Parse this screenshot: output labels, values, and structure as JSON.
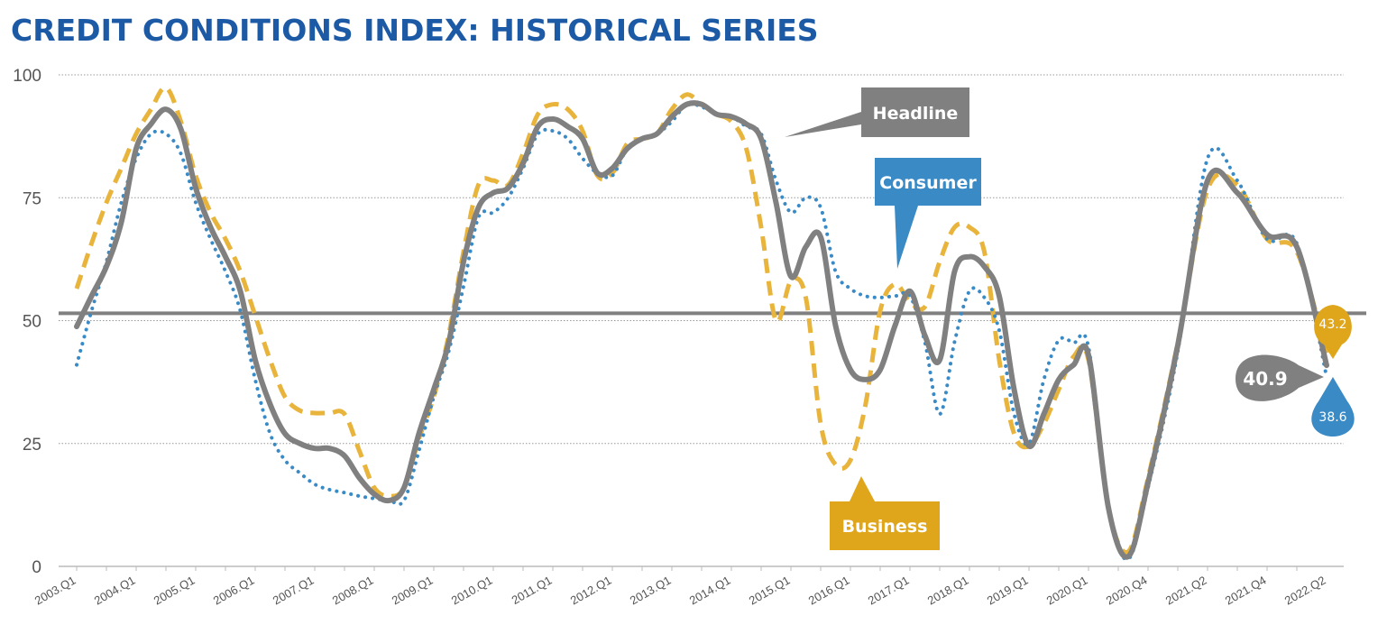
{
  "chart_data": {
    "type": "line",
    "title": "CREDIT CONDITIONS INDEX: HISTORICAL SERIES",
    "ylim": [
      0,
      100
    ],
    "yticks": [
      0,
      25,
      50,
      75,
      100
    ],
    "grid": true,
    "reference_line": 51.5,
    "x_tick_labels": [
      "2003.Q1",
      "2004.Q1",
      "2005.Q1",
      "2006.Q1",
      "2007.Q1",
      "2008.Q1",
      "2009.Q1",
      "2010.Q1",
      "2011.Q1",
      "2012.Q1",
      "2013.Q1",
      "2014.Q1",
      "2015.Q1",
      "2016.Q1",
      "2017.Q1",
      "2018.Q1",
      "2019.Q1",
      "2020.Q1",
      "2020.Q4",
      "2021.Q2",
      "2021.Q4",
      "2022.Q2"
    ],
    "x": [
      "2003.Q1",
      "2003.Q2",
      "2003.Q3",
      "2003.Q4",
      "2004.Q1",
      "2004.Q2",
      "2004.Q3",
      "2004.Q4",
      "2005.Q1",
      "2005.Q2",
      "2005.Q3",
      "2005.Q4",
      "2006.Q1",
      "2006.Q2",
      "2006.Q3",
      "2006.Q4",
      "2007.Q1",
      "2007.Q2",
      "2007.Q3",
      "2007.Q4",
      "2008.Q1",
      "2008.Q2",
      "2008.Q3",
      "2008.Q4",
      "2009.Q1",
      "2009.Q2",
      "2009.Q3",
      "2009.Q4",
      "2010.Q1",
      "2010.Q2",
      "2010.Q3",
      "2010.Q4",
      "2011.Q1",
      "2011.Q2",
      "2011.Q3",
      "2011.Q4",
      "2012.Q1",
      "2012.Q2",
      "2012.Q3",
      "2012.Q4",
      "2013.Q1",
      "2013.Q2",
      "2013.Q3",
      "2013.Q4",
      "2014.Q1",
      "2014.Q2",
      "2014.Q3",
      "2014.Q4",
      "2015.Q1",
      "2015.Q2",
      "2015.Q3",
      "2015.Q4",
      "2016.Q1",
      "2016.Q2",
      "2016.Q3",
      "2016.Q4",
      "2017.Q1",
      "2017.Q2",
      "2017.Q3",
      "2017.Q4",
      "2018.Q1",
      "2018.Q2",
      "2018.Q3",
      "2018.Q4",
      "2019.Q1",
      "2019.Q2",
      "2019.Q3",
      "2019.Q4",
      "2020.Q1",
      "2020.Q2",
      "2020.Q3",
      "2020.Q4",
      "2021.Q1",
      "2021.Q2",
      "2021.Q3",
      "2021.Q4",
      "2022.Q1",
      "2022.Q2"
    ],
    "series": [
      {
        "name": "Headline",
        "color": "#808080",
        "style": "solid",
        "last_value": "40.9",
        "values": [
          48.8,
          55,
          61,
          70,
          85,
          90,
          93,
          89,
          77,
          69,
          63,
          56,
          42,
          33,
          27,
          25,
          24,
          24,
          22.5,
          18,
          14.7,
          13.4,
          16,
          27,
          36,
          45.5,
          62,
          73,
          76,
          77,
          82,
          89.5,
          91,
          89.5,
          87,
          80,
          81,
          85,
          87,
          88,
          91.5,
          94,
          94,
          92,
          91.5,
          90,
          87,
          74,
          59,
          65,
          67,
          49,
          40,
          38,
          40,
          49,
          56,
          47,
          42,
          60,
          63,
          61,
          55,
          36,
          24.5,
          31,
          38,
          41,
          43,
          12,
          2,
          17,
          45,
          78.5,
          76,
          67.5,
          65,
          40.9
        ]
      },
      {
        "name": "Consumer",
        "color": "#3a8ac6",
        "style": "dotted",
        "last_value": "38.6",
        "values": [
          41,
          52,
          62,
          74,
          83,
          88,
          88,
          84,
          74,
          66.6,
          60,
          52,
          38,
          27,
          21.6,
          19,
          16.7,
          15.6,
          15,
          14.3,
          13.8,
          13.4,
          13.4,
          23.5,
          34.5,
          43.7,
          57,
          71,
          72,
          75,
          81,
          88,
          88.6,
          87,
          83,
          80,
          79.5,
          85,
          87,
          88,
          90.5,
          94,
          93.5,
          92,
          91.5,
          89.5,
          88,
          78.5,
          72,
          75,
          73,
          60,
          56.5,
          55,
          54.7,
          55,
          55,
          45.7,
          31,
          45.7,
          56,
          54.7,
          48,
          31,
          25,
          38,
          46,
          45.5,
          44.6,
          12,
          1.5,
          16,
          43.7,
          83,
          78.5,
          66.6,
          65.7,
          38.6
        ]
      },
      {
        "name": "Business",
        "color": "#e8b43c",
        "style": "dashed",
        "last_value": "43.2",
        "values": [
          56.5,
          65.7,
          74,
          81,
          88,
          93,
          97.4,
          90.5,
          79.5,
          72,
          66.6,
          60,
          51,
          42,
          34.5,
          31.7,
          31.2,
          31.2,
          31,
          23.5,
          16,
          14.3,
          16,
          26,
          34.5,
          47,
          64,
          77.6,
          78.5,
          77.6,
          84,
          92,
          94,
          93,
          88.6,
          79.5,
          80,
          86,
          87,
          88,
          93,
          96,
          94,
          92,
          90.5,
          85,
          69,
          50,
          58,
          54.7,
          29,
          20.7,
          21.6,
          32.7,
          52,
          57.4,
          53.8,
          52.8,
          62,
          69,
          69,
          64,
          42,
          27,
          24.4,
          29,
          36,
          42.7,
          42,
          12,
          3,
          18,
          45.5,
          76.7,
          77.6,
          66.6,
          64,
          43.2
        ]
      }
    ],
    "annotations": {
      "headline": "Headline",
      "consumer": "Consumer",
      "business": "Business"
    },
    "colors": {
      "title": "#1d5aa6",
      "headline_box": "#808080",
      "consumer_box": "#3a8ac6",
      "business_box": "#e0a61b",
      "reference_line": "#808080"
    }
  }
}
